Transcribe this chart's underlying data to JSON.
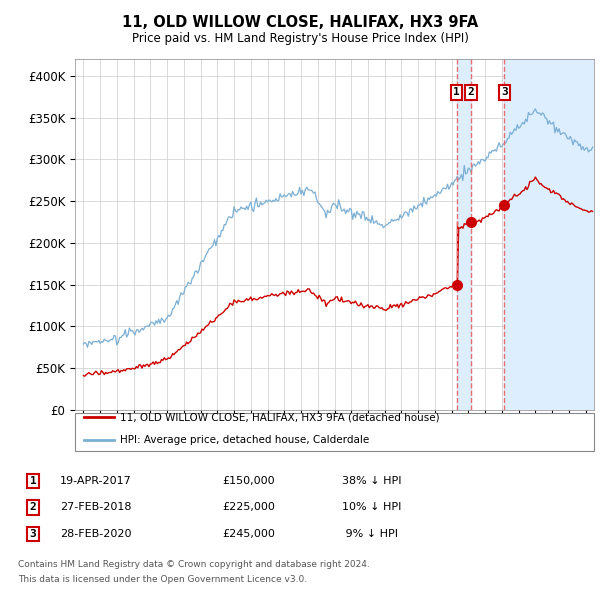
{
  "title": "11, OLD WILLOW CLOSE, HALIFAX, HX3 9FA",
  "subtitle": "Price paid vs. HM Land Registry's House Price Index (HPI)",
  "legend_line1": "11, OLD WILLOW CLOSE, HALIFAX, HX3 9FA (detached house)",
  "legend_line2": "HPI: Average price, detached house, Calderdale",
  "footer1": "Contains HM Land Registry data © Crown copyright and database right 2024.",
  "footer2": "This data is licensed under the Open Government Licence v3.0.",
  "transactions": [
    {
      "num": 1,
      "date": "19-APR-2017",
      "price": 150000,
      "pct": "38%",
      "dir": "↓",
      "x": 2017.29
    },
    {
      "num": 2,
      "date": "27-FEB-2018",
      "price": 225000,
      "pct": "10%",
      "dir": "↓",
      "x": 2018.15
    },
    {
      "num": 3,
      "date": "28-FEB-2020",
      "price": 245000,
      "pct": "9%",
      "dir": "↓",
      "x": 2020.15
    }
  ],
  "hpi_color": "#7bafd4",
  "price_color": "#cc0000",
  "dashed_color": "#e87070",
  "shade_color": "#ddeeff",
  "background_color": "#ffffff",
  "grid_color": "#cccccc",
  "ylim": [
    0,
    420000
  ],
  "yticks": [
    0,
    50000,
    100000,
    150000,
    200000,
    250000,
    300000,
    350000,
    400000
  ],
  "xlim": [
    1994.5,
    2025.5
  ]
}
